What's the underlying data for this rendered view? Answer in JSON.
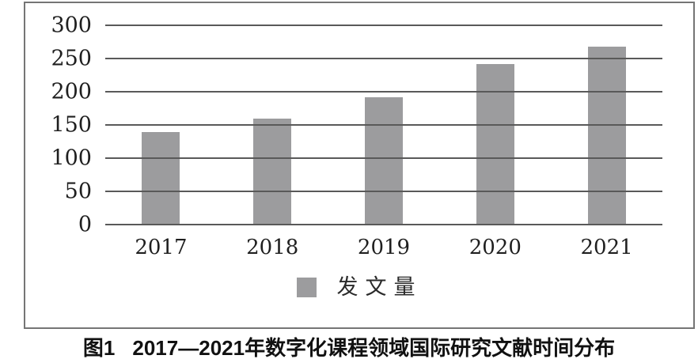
{
  "chart_data": {
    "type": "bar",
    "title": "",
    "categories": [
      "2017",
      "2018",
      "2019",
      "2020",
      "2021"
    ],
    "values": [
      139,
      160,
      192,
      242,
      268
    ],
    "series_name": "发文量",
    "xlabel": "",
    "ylabel": "",
    "ylim": [
      0,
      300
    ],
    "yticks": [
      0,
      50,
      100,
      150,
      200,
      250,
      300
    ],
    "grid": "horizontal",
    "legend_position": "bottom-center",
    "bar_color": "#9c9c9e",
    "grid_color": "#595959"
  },
  "legend": {
    "label": "发文量",
    "swatch_color": "#9c9c9e"
  },
  "caption": {
    "figure_label": "图1",
    "text": "2017—2021年数字化课程领域国际研究文献时间分布"
  }
}
